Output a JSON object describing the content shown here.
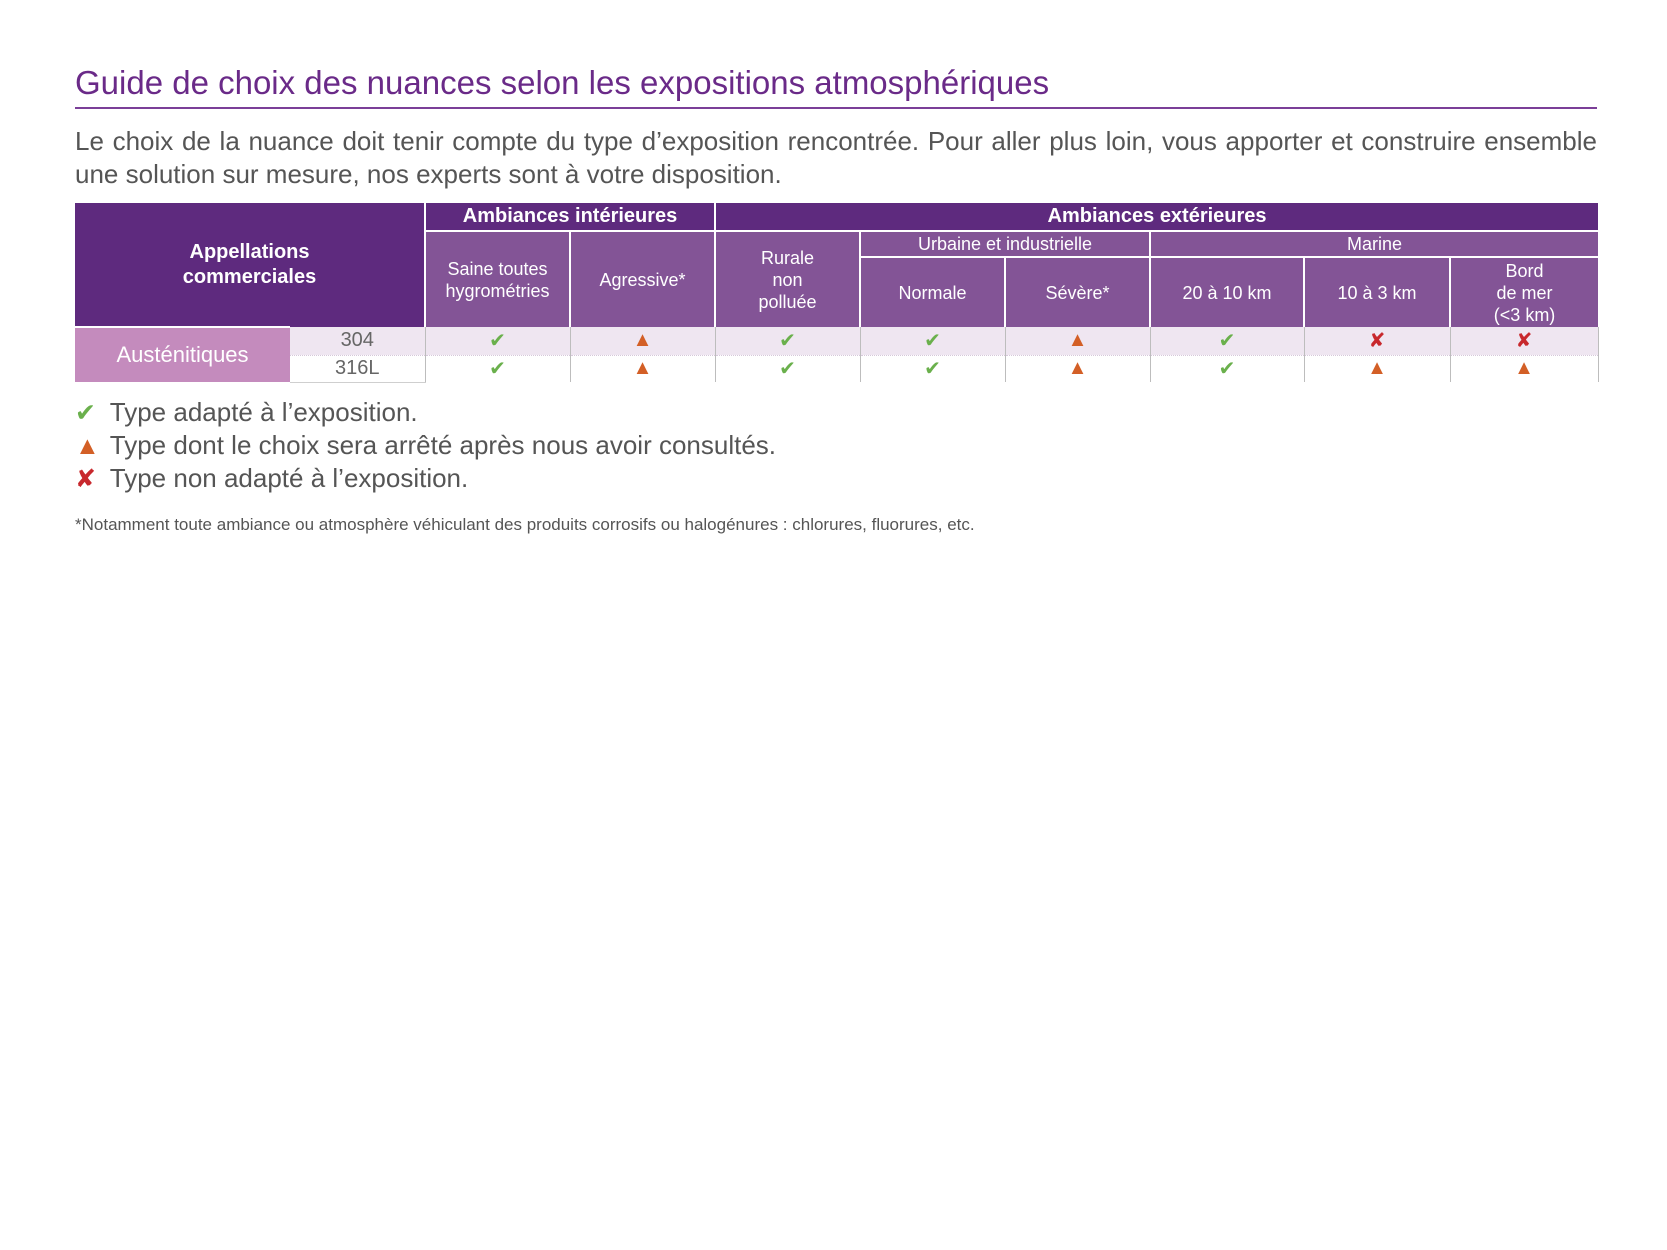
{
  "title": "Guide de choix des nuances selon les expositions atmosphériques",
  "intro": "Le choix de la nuance doit tenir compte du type d’exposition rencontrée. Pour aller plus loin, vous apporter et construire ensemble une solution sur mesure, nos experts sont à votre disposition.",
  "table": {
    "appellations": "Appellations commerciales",
    "interieures": "Ambiances intérieures",
    "exterieures": "Ambiances extérieures",
    "saine": "Saine toutes hygrométries",
    "agressive": "Agressive*",
    "rurale": "Rurale non polluée",
    "urbaine": "Urbaine et industrielle",
    "marine": "Marine",
    "normale": "Normale",
    "severe": "Sévère*",
    "km20": "20 à 10 km",
    "km10": "10 à 3 km",
    "bord_l1": "Bord",
    "bord_l2": "de mer",
    "bord_l3": "(<3 km)",
    "family": "Austénitiques",
    "rows": [
      {
        "grade": "304",
        "cells": [
          "ok",
          "warn",
          "ok",
          "ok",
          "warn",
          "ok",
          "ko",
          "ko"
        ]
      },
      {
        "grade": "316L",
        "cells": [
          "ok",
          "warn",
          "ok",
          "ok",
          "warn",
          "ok",
          "warn",
          "warn"
        ]
      }
    ]
  },
  "symbols": {
    "ok": "✔",
    "warn": "▲",
    "ko": "✘"
  },
  "colors": {
    "ok": "#6ab04c",
    "warn": "#d35f26",
    "ko": "#c8282d",
    "header_dark": "#5e2a7e",
    "header_medium": "#835496",
    "family": "#c48bbd"
  },
  "legend": {
    "ok": "Type adapté à l’exposition.",
    "warn": "Type dont le choix sera arrêté après nous avoir consultés.",
    "ko": "Type non adapté à l’exposition."
  },
  "footnote": "*Notamment toute ambiance ou atmosphère véhiculant des produits corrosifs ou halogénures : chlorures, fluorures, etc."
}
